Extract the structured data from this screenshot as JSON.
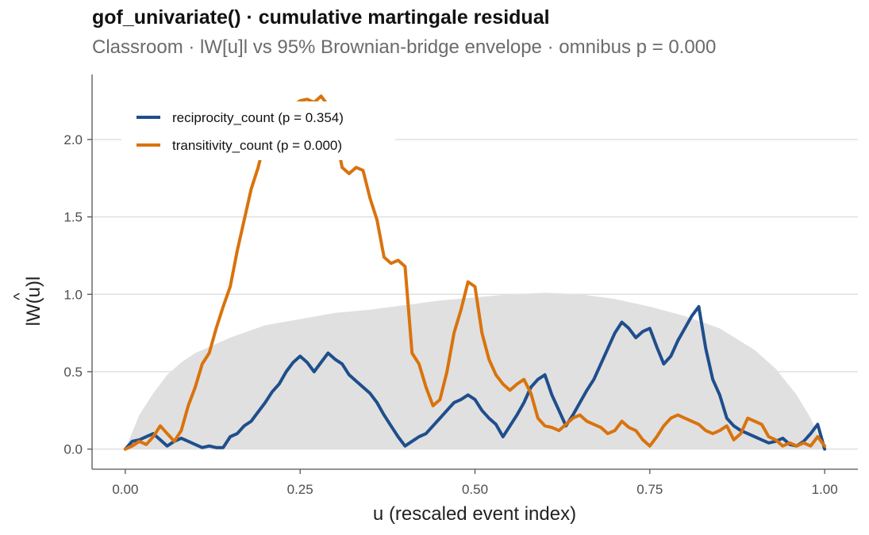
{
  "title": "gof_univariate() · cumulative martingale residual",
  "subtitle": "Classroom · lW[u]l vs 95% Brownian-bridge envelope · omnibus p = 0.000",
  "chart_data": {
    "type": "line",
    "title": "gof_univariate() · cumulative martingale residual",
    "subtitle": "Classroom · lW[u]l vs 95% Brownian-bridge envelope · omnibus p = 0.000",
    "xlabel": "u (rescaled event index)",
    "ylabel_base": "lW(u)l",
    "ylabel_hat": "^",
    "xlim": [
      -0.0475,
      1.0475
    ],
    "ylim": [
      -0.13,
      2.42
    ],
    "xticks": [
      0,
      0.25,
      0.5,
      0.75,
      1
    ],
    "xtick_labels": [
      "0.00",
      "0.25",
      "0.50",
      "0.75",
      "1.00"
    ],
    "yticks": [
      0,
      0.5,
      1,
      1.5,
      2
    ],
    "ytick_labels": [
      "0.0",
      "0.5",
      "1.0",
      "1.5",
      "2.0"
    ],
    "grid": "horizontal major",
    "legend_position": "top-left",
    "envelope": {
      "color": "#e0e0e0",
      "x": [
        0,
        0.02,
        0.04,
        0.06,
        0.08,
        0.1,
        0.12,
        0.15,
        0.2,
        0.25,
        0.3,
        0.35,
        0.4,
        0.45,
        0.5,
        0.55,
        0.6,
        0.65,
        0.7,
        0.75,
        0.8,
        0.85,
        0.9,
        0.93,
        0.96,
        0.98,
        1
      ],
      "y": [
        0,
        0.22,
        0.36,
        0.48,
        0.56,
        0.62,
        0.66,
        0.72,
        0.8,
        0.84,
        0.88,
        0.9,
        0.93,
        0.96,
        0.98,
        1.0,
        1.01,
        1.0,
        0.97,
        0.92,
        0.86,
        0.78,
        0.64,
        0.52,
        0.35,
        0.2,
        0
      ]
    },
    "series": [
      {
        "name": "reciprocity_count (p = 0.354)",
        "color": "#1f4e8c",
        "x": [
          0,
          0.01,
          0.02,
          0.03,
          0.04,
          0.05,
          0.06,
          0.07,
          0.08,
          0.09,
          0.1,
          0.11,
          0.12,
          0.13,
          0.14,
          0.15,
          0.16,
          0.17,
          0.18,
          0.19,
          0.2,
          0.21,
          0.22,
          0.23,
          0.24,
          0.25,
          0.26,
          0.27,
          0.28,
          0.29,
          0.3,
          0.31,
          0.32,
          0.33,
          0.34,
          0.35,
          0.36,
          0.37,
          0.38,
          0.39,
          0.4,
          0.41,
          0.42,
          0.43,
          0.44,
          0.45,
          0.46,
          0.47,
          0.48,
          0.49,
          0.5,
          0.51,
          0.52,
          0.53,
          0.54,
          0.55,
          0.56,
          0.57,
          0.58,
          0.59,
          0.6,
          0.61,
          0.62,
          0.63,
          0.64,
          0.65,
          0.66,
          0.67,
          0.68,
          0.69,
          0.7,
          0.71,
          0.72,
          0.73,
          0.74,
          0.75,
          0.76,
          0.77,
          0.78,
          0.79,
          0.8,
          0.81,
          0.82,
          0.83,
          0.84,
          0.85,
          0.86,
          0.87,
          0.88,
          0.89,
          0.9,
          0.91,
          0.92,
          0.93,
          0.94,
          0.95,
          0.96,
          0.97,
          0.98,
          0.99,
          1
        ],
        "y": [
          0,
          0.05,
          0.06,
          0.08,
          0.1,
          0.06,
          0.02,
          0.05,
          0.07,
          0.05,
          0.03,
          0.01,
          0.02,
          0.01,
          0.01,
          0.08,
          0.1,
          0.15,
          0.18,
          0.24,
          0.3,
          0.37,
          0.42,
          0.5,
          0.56,
          0.6,
          0.56,
          0.5,
          0.56,
          0.62,
          0.58,
          0.55,
          0.48,
          0.44,
          0.4,
          0.36,
          0.3,
          0.22,
          0.15,
          0.08,
          0.02,
          0.05,
          0.08,
          0.1,
          0.15,
          0.2,
          0.25,
          0.3,
          0.32,
          0.35,
          0.32,
          0.25,
          0.2,
          0.16,
          0.08,
          0.15,
          0.22,
          0.3,
          0.4,
          0.45,
          0.48,
          0.35,
          0.25,
          0.15,
          0.22,
          0.3,
          0.38,
          0.45,
          0.55,
          0.65,
          0.75,
          0.82,
          0.78,
          0.72,
          0.76,
          0.78,
          0.66,
          0.55,
          0.6,
          0.7,
          0.78,
          0.86,
          0.92,
          0.65,
          0.45,
          0.35,
          0.2,
          0.15,
          0.12,
          0.1,
          0.08,
          0.06,
          0.04,
          0.05,
          0.07,
          0.03,
          0.02,
          0.05,
          0.1,
          0.16,
          0.0
        ]
      },
      {
        "name": "transitivity_count (p = 0.000)",
        "color": "#d9730d",
        "x": [
          0,
          0.01,
          0.02,
          0.03,
          0.04,
          0.05,
          0.06,
          0.07,
          0.08,
          0.09,
          0.1,
          0.11,
          0.12,
          0.13,
          0.14,
          0.15,
          0.16,
          0.17,
          0.18,
          0.19,
          0.2,
          0.21,
          0.22,
          0.23,
          0.24,
          0.25,
          0.26,
          0.27,
          0.28,
          0.29,
          0.3,
          0.31,
          0.32,
          0.33,
          0.34,
          0.35,
          0.36,
          0.37,
          0.38,
          0.39,
          0.4,
          0.41,
          0.42,
          0.43,
          0.44,
          0.45,
          0.46,
          0.47,
          0.48,
          0.49,
          0.5,
          0.51,
          0.52,
          0.53,
          0.54,
          0.55,
          0.56,
          0.57,
          0.58,
          0.59,
          0.6,
          0.61,
          0.62,
          0.63,
          0.64,
          0.65,
          0.66,
          0.67,
          0.68,
          0.69,
          0.7,
          0.71,
          0.72,
          0.73,
          0.74,
          0.75,
          0.76,
          0.77,
          0.78,
          0.79,
          0.8,
          0.81,
          0.82,
          0.83,
          0.84,
          0.85,
          0.86,
          0.87,
          0.88,
          0.89,
          0.9,
          0.91,
          0.92,
          0.93,
          0.94,
          0.95,
          0.96,
          0.97,
          0.98,
          0.99,
          1
        ],
        "y": [
          0,
          0.02,
          0.05,
          0.03,
          0.08,
          0.15,
          0.1,
          0.05,
          0.12,
          0.28,
          0.4,
          0.55,
          0.62,
          0.78,
          0.92,
          1.05,
          1.28,
          1.48,
          1.68,
          1.82,
          2.0,
          2.12,
          2.15,
          2.18,
          2.22,
          2.25,
          2.26,
          2.24,
          2.28,
          2.22,
          2.05,
          1.82,
          1.78,
          1.82,
          1.8,
          1.62,
          1.48,
          1.24,
          1.2,
          1.22,
          1.18,
          0.62,
          0.55,
          0.4,
          0.28,
          0.32,
          0.5,
          0.75,
          0.9,
          1.08,
          1.05,
          0.75,
          0.58,
          0.48,
          0.42,
          0.38,
          0.42,
          0.45,
          0.36,
          0.2,
          0.15,
          0.14,
          0.12,
          0.16,
          0.2,
          0.22,
          0.18,
          0.16,
          0.14,
          0.1,
          0.12,
          0.18,
          0.14,
          0.12,
          0.06,
          0.02,
          0.08,
          0.15,
          0.2,
          0.22,
          0.2,
          0.18,
          0.16,
          0.12,
          0.1,
          0.12,
          0.15,
          0.06,
          0.1,
          0.2,
          0.18,
          0.16,
          0.08,
          0.06,
          0.02,
          0.04,
          0.02,
          0.04,
          0.02,
          0.08,
          0.02
        ]
      }
    ]
  }
}
